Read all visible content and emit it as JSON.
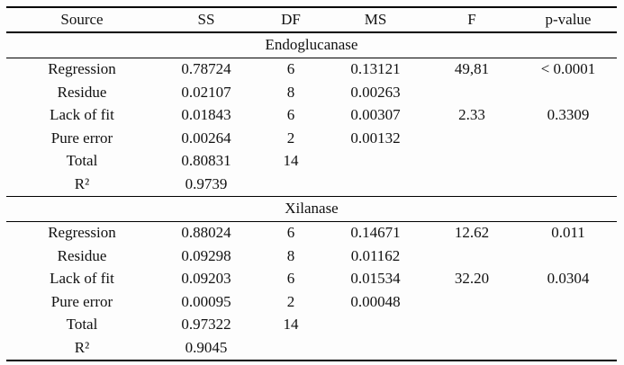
{
  "table": {
    "columns": [
      "Source",
      "SS",
      "DF",
      "MS",
      "F",
      "p-value"
    ],
    "sections": [
      {
        "title": "Endoglucanase",
        "rows": [
          [
            "Regression",
            "0.78724",
            "6",
            "0.13121",
            "49,81",
            "< 0.0001"
          ],
          [
            "Residue",
            "0.02107",
            "8",
            "0.00263",
            "",
            ""
          ],
          [
            "Lack of fit",
            "0.01843",
            "6",
            "0.00307",
            "2.33",
            "0.3309"
          ],
          [
            "Pure error",
            "0.00264",
            "2",
            "0.00132",
            "",
            ""
          ],
          [
            "Total",
            "0.80831",
            "14",
            "",
            "",
            ""
          ],
          [
            "R²",
            "0.9739",
            "",
            "",
            "",
            ""
          ]
        ]
      },
      {
        "title": "Xilanase",
        "rows": [
          [
            "Regression",
            "0.88024",
            "6",
            "0.14671",
            "12.62",
            "0.011"
          ],
          [
            "Residue",
            "0.09298",
            "8",
            "0.01162",
            "",
            ""
          ],
          [
            "Lack of fit",
            "0.09203",
            "6",
            "0.01534",
            "32.20",
            "0.0304"
          ],
          [
            "Pure error",
            "0.00095",
            "2",
            "0.00048",
            "",
            ""
          ],
          [
            "Total",
            "0.97322",
            "14",
            "",
            "",
            ""
          ],
          [
            "R²",
            "0.9045",
            "",
            "",
            "",
            ""
          ]
        ]
      }
    ]
  }
}
